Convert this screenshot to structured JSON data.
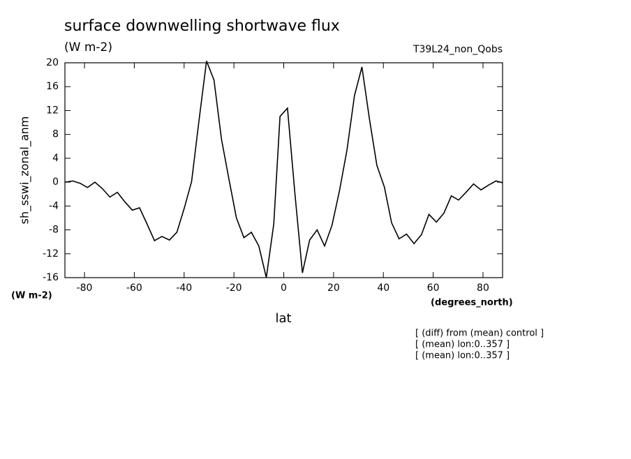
{
  "chart_data": {
    "type": "line",
    "title": "surface downwelling shortwave flux",
    "subtitle": "(W m-2)",
    "experiment": "T39L24_non_Qobs",
    "y_label": "sh_sswi_zonal_anm",
    "y_units": "(W m-2)",
    "x_label": "lat",
    "x_units": "(degrees_north)",
    "notes": [
      "[ (diff) from (mean) control ]",
      "[ (mean) lon:0..357 ]",
      "[ (mean) lon:0..357 ]"
    ],
    "color": "#000000",
    "x": [
      -87.8,
      -84.7,
      -81.7,
      -78.8,
      -75.8,
      -72.8,
      -69.8,
      -66.8,
      -63.8,
      -60.8,
      -57.9,
      -54.9,
      -51.9,
      -48.9,
      -45.9,
      -42.9,
      -39.9,
      -37.0,
      -34.0,
      -31.0,
      -28.0,
      -25.0,
      -22.0,
      -19.0,
      -16.0,
      -13.0,
      -10.0,
      -7.0,
      -4.0,
      -1.5,
      1.5,
      4.5,
      7.5,
      10.4,
      13.4,
      16.4,
      19.4,
      22.4,
      25.4,
      28.4,
      31.4,
      34.4,
      37.4,
      40.4,
      43.3,
      46.3,
      49.3,
      52.3,
      55.3,
      58.3,
      61.3,
      64.3,
      67.3,
      70.2,
      73.2,
      76.2,
      79.2,
      82.2,
      85.2,
      87.8
    ],
    "values": [
      0,
      0.2,
      -0.2,
      -0.9,
      0,
      -1.1,
      -2.5,
      -1.7,
      -3.3,
      -4.7,
      -4.3,
      -7,
      -9.8,
      -9.1,
      -9.7,
      -8.4,
      -4.3,
      0.1,
      10.4,
      20.3,
      17.1,
      7.2,
      0.5,
      -6,
      -9.3,
      -8.4,
      -10.7,
      -16,
      -7,
      11,
      12.4,
      -2,
      -15.2,
      -9.7,
      -8,
      -10.7,
      -7.2,
      -1.4,
      5.4,
      14.5,
      19.3,
      10.6,
      2.8,
      -0.8,
      -6.8,
      -9.5,
      -8.7,
      -10.3,
      -8.8,
      -5.4,
      -6.7,
      -5.2,
      -2.3,
      -3,
      -1.7,
      -0.3,
      -1.3,
      -0.5,
      0.2,
      -0.1
    ],
    "xlim": [
      -87.86,
      87.86
    ],
    "ylim": [
      -16,
      20
    ],
    "xticks": [
      -80,
      -60,
      -40,
      -20,
      0,
      20,
      40,
      60,
      80
    ],
    "yticks": [
      -16,
      -12,
      -8,
      -4,
      0,
      4,
      8,
      12,
      16,
      20
    ]
  }
}
